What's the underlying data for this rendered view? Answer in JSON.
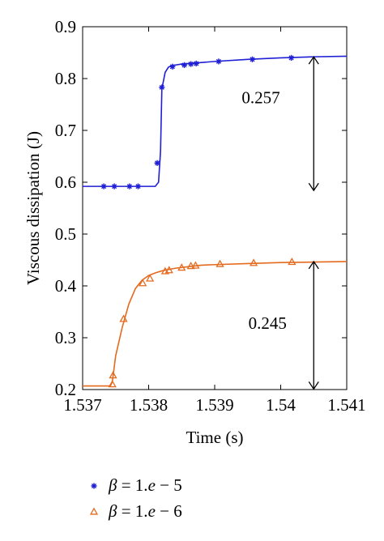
{
  "chart_data": {
    "type": "line",
    "xlabel": "Time (s)",
    "ylabel": "Viscous dissipation (J)",
    "xlim": [
      1.537,
      1.541
    ],
    "ylim": [
      0.2,
      0.9
    ],
    "xticks": [
      1.537,
      1.538,
      1.539,
      1.54,
      1.541
    ],
    "xtick_labels": [
      "1.537",
      "1.538",
      "1.539",
      "1.54",
      "1.541"
    ],
    "yticks": [
      0.2,
      0.3,
      0.4,
      0.5,
      0.6,
      0.7,
      0.8,
      0.9
    ],
    "ytick_labels": [
      "0.2",
      "0.3",
      "0.4",
      "0.5",
      "0.6",
      "0.7",
      "0.8",
      "0.9"
    ],
    "grid": false,
    "legend": "below",
    "series": [
      {
        "name": "β = 1.e − 5",
        "legend_parts": [
          "β",
          " = 1.",
          "e",
          " − 5"
        ],
        "color": "#1f1fd6",
        "marker": "asterisk",
        "line": {
          "x": [
            1.537,
            1.53795,
            1.5381,
            1.53815,
            1.53818,
            1.5382,
            1.53825,
            1.5383,
            1.53835,
            1.5384,
            1.5385,
            1.5386,
            1.5387,
            1.539,
            1.5395,
            1.54,
            1.5405,
            1.541
          ],
          "y": [
            0.592,
            0.592,
            0.592,
            0.6,
            0.66,
            0.78,
            0.812,
            0.822,
            0.825,
            0.826,
            0.828,
            0.829,
            0.83,
            0.833,
            0.837,
            0.84,
            0.842,
            0.843
          ]
        },
        "markers": {
          "x": [
            1.53732,
            1.53748,
            1.53771,
            1.53784,
            1.53813,
            1.5382,
            1.53836,
            1.53854,
            1.53864,
            1.53872,
            1.53906,
            1.53957,
            1.54016
          ],
          "y": [
            0.592,
            0.592,
            0.592,
            0.592,
            0.637,
            0.783,
            0.823,
            0.826,
            0.828,
            0.829,
            0.833,
            0.837,
            0.84
          ]
        }
      },
      {
        "name": "β = 1.e − 6",
        "legend_parts": [
          "β",
          " = 1.",
          "e",
          " − 6"
        ],
        "color": "#e46a1e",
        "marker": "triangle",
        "line": {
          "x": [
            1.537,
            1.53742,
            1.53745,
            1.5375,
            1.5376,
            1.5377,
            1.5378,
            1.5379,
            1.538,
            1.5381,
            1.5382,
            1.5384,
            1.5386,
            1.5388,
            1.539,
            1.5395,
            1.54,
            1.5405,
            1.541
          ],
          "y": [
            0.207,
            0.207,
            0.215,
            0.265,
            0.32,
            0.365,
            0.395,
            0.411,
            0.42,
            0.425,
            0.429,
            0.434,
            0.437,
            0.44,
            0.441,
            0.443,
            0.445,
            0.446,
            0.447
          ]
        },
        "markers": {
          "x": [
            1.53745,
            1.53746,
            1.53762,
            1.53791,
            1.53802,
            1.53825,
            1.53831,
            1.5385,
            1.53864,
            1.53871,
            1.53908,
            1.53959,
            1.54017
          ],
          "y": [
            0.21,
            0.227,
            0.336,
            0.405,
            0.414,
            0.428,
            0.43,
            0.435,
            0.438,
            0.439,
            0.442,
            0.444,
            0.446
          ]
        }
      }
    ],
    "annotations": [
      {
        "text": "0.257",
        "arrow_x": 1.5405,
        "from": 0.584,
        "to": 0.842,
        "label_x": 1.5397,
        "label_y": 0.752
      },
      {
        "text": "0.245",
        "arrow_x": 1.5405,
        "from": 0.201,
        "to": 0.447,
        "label_x": 1.5398,
        "label_y": 0.317
      }
    ]
  }
}
